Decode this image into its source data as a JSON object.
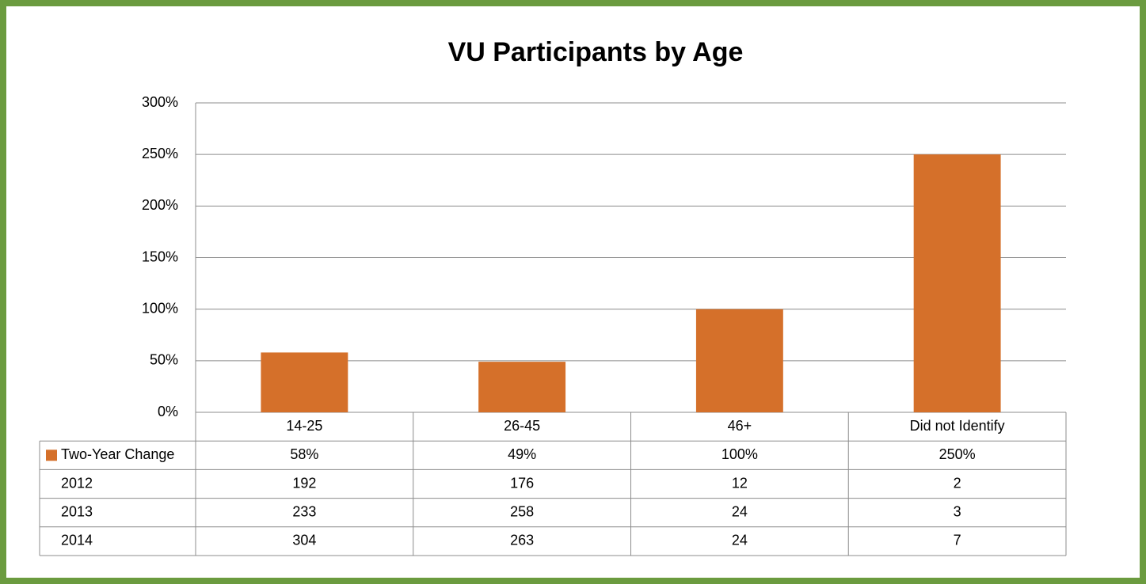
{
  "chart_data": {
    "type": "bar",
    "title": "VU Participants by Age",
    "categories": [
      "14-25",
      "26-45",
      "46+",
      "Did not Identify"
    ],
    "series": [
      {
        "name": "Two-Year Change",
        "color": "#d5702a",
        "values": [
          58,
          49,
          100,
          250
        ],
        "value_labels": [
          "58%",
          "49%",
          "100%",
          "250%"
        ]
      }
    ],
    "table_rows": [
      {
        "name": "2012",
        "values": [
          192,
          176,
          12,
          2
        ]
      },
      {
        "name": "2013",
        "values": [
          233,
          258,
          24,
          3
        ]
      },
      {
        "name": "2014",
        "values": [
          304,
          263,
          24,
          7
        ]
      }
    ],
    "ylim": [
      0,
      300
    ],
    "yticks": [
      {
        "value": 0,
        "label": "0%"
      },
      {
        "value": 50,
        "label": "50%"
      },
      {
        "value": 100,
        "label": "100%"
      },
      {
        "value": 150,
        "label": "150%"
      },
      {
        "value": 200,
        "label": "200%"
      },
      {
        "value": 250,
        "label": "250%"
      },
      {
        "value": 300,
        "label": "300%"
      }
    ],
    "grid": true
  }
}
